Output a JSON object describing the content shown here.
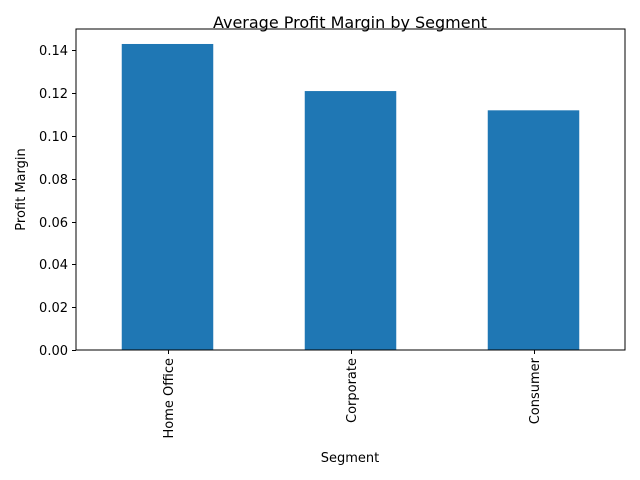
{
  "chart_data": {
    "type": "bar",
    "title": "Average Profit Margin by Segment",
    "xlabel": "Segment",
    "ylabel": "Profit Margin",
    "categories": [
      "Home Office",
      "Corporate",
      "Consumer"
    ],
    "values": [
      0.143,
      0.121,
      0.112
    ],
    "ylim": [
      0,
      0.15
    ],
    "yticks": [
      "0.00",
      "0.02",
      "0.04",
      "0.06",
      "0.08",
      "0.10",
      "0.12",
      "0.14"
    ],
    "ytick_values": [
      0,
      0.02,
      0.04,
      0.06,
      0.08,
      0.1,
      0.12,
      0.14
    ],
    "xtick_rotation": "vertical",
    "grid": false,
    "legend": "none",
    "bar_color": "#1f77b4"
  }
}
